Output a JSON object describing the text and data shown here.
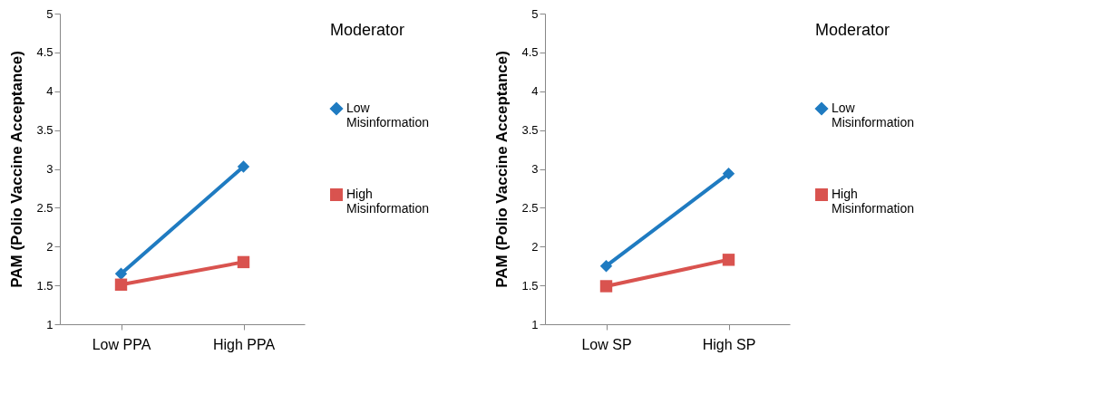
{
  "chart_data": [
    {
      "type": "line",
      "ylabel": "PAM (Polio Vaccine Acceptance)",
      "legend_title": "Moderator",
      "categories": [
        "Low PPA",
        "High PPA"
      ],
      "ylim": [
        1,
        5
      ],
      "yticks": [
        1,
        1.5,
        2,
        2.5,
        3,
        3.5,
        4,
        4.5,
        5
      ],
      "grid": false,
      "legend": "right",
      "series": [
        {
          "name": "Low Misinformation",
          "color": "#1f7bc1",
          "marker": "diamond",
          "values": [
            1.65,
            3.03
          ]
        },
        {
          "name": "High Misinformation",
          "color": "#d9534f",
          "marker": "square",
          "values": [
            1.51,
            1.8
          ]
        }
      ]
    },
    {
      "type": "line",
      "ylabel": "PAM (Polio Vaccine Acceptance)",
      "legend_title": "Moderator",
      "categories": [
        "Low SP",
        "High SP"
      ],
      "ylim": [
        1,
        5
      ],
      "yticks": [
        1,
        1.5,
        2,
        2.5,
        3,
        3.5,
        4,
        4.5,
        5
      ],
      "grid": false,
      "legend": "right",
      "series": [
        {
          "name": "Low Misinformation",
          "color": "#1f7bc1",
          "marker": "diamond",
          "values": [
            1.75,
            2.94
          ]
        },
        {
          "name": "High Misinformation",
          "color": "#d9534f",
          "marker": "square",
          "values": [
            1.49,
            1.83
          ]
        }
      ]
    }
  ]
}
